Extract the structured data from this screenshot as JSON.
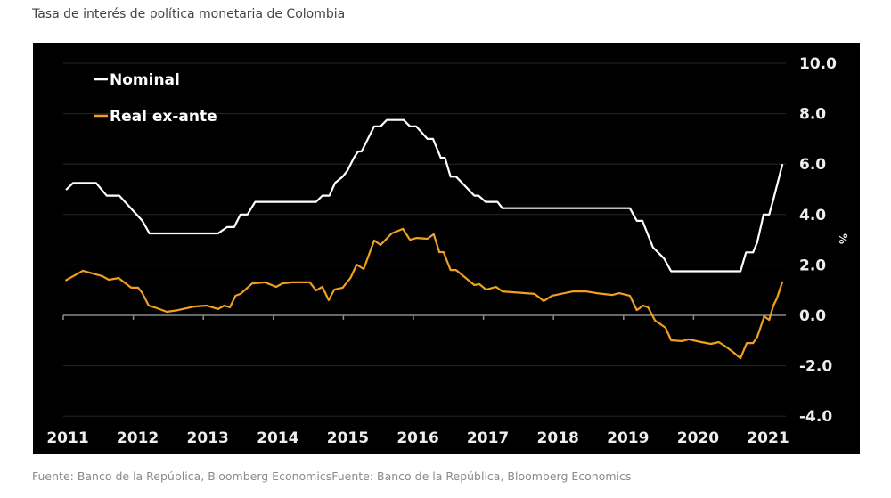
{
  "title": "Tasa de interés de política monetaria de Colombia",
  "source": "Fuente: Banco de la República, Bloomberg Economics",
  "source_repeat": "Fuente: Banco de la República, Bloomberg Economics",
  "chart_data": {
    "type": "line",
    "title": "Tasa de interés de política monetaria de Colombia",
    "xlabel": "",
    "ylabel": "%",
    "xlim": [
      2011,
      2021.35
    ],
    "ylim": [
      -4.0,
      10.0
    ],
    "x_ticks": [
      "2011",
      "2012",
      "2013",
      "2014",
      "2015",
      "2016",
      "2017",
      "2018",
      "2019",
      "2020",
      "2021"
    ],
    "y_ticks": [
      "10.0",
      "8.0",
      "6.0",
      "4.0",
      "2.0",
      "0.0",
      "-2.0",
      "-4.0"
    ],
    "grid": true,
    "legend_placement": "top-left",
    "background": "#000000",
    "series": [
      {
        "name": "Nominal",
        "color": "#ffffff",
        "points": [
          [
            2011.04,
            4.98
          ],
          [
            2011.14,
            5.25
          ],
          [
            2011.47,
            5.25
          ],
          [
            2011.62,
            4.75
          ],
          [
            2011.8,
            4.75
          ],
          [
            2012.13,
            3.75
          ],
          [
            2012.23,
            3.25
          ],
          [
            2013.21,
            3.25
          ],
          [
            2013.34,
            3.5
          ],
          [
            2013.44,
            3.5
          ],
          [
            2013.53,
            4.0
          ],
          [
            2013.63,
            4.0
          ],
          [
            2013.74,
            4.5
          ],
          [
            2014.61,
            4.5
          ],
          [
            2014.7,
            4.75
          ],
          [
            2014.8,
            4.75
          ],
          [
            2014.88,
            5.25
          ],
          [
            2014.99,
            5.5
          ],
          [
            2015.06,
            5.75
          ],
          [
            2015.15,
            6.25
          ],
          [
            2015.21,
            6.5
          ],
          [
            2015.26,
            6.5
          ],
          [
            2015.35,
            7.0
          ],
          [
            2015.44,
            7.5
          ],
          [
            2015.53,
            7.5
          ],
          [
            2015.62,
            7.75
          ],
          [
            2015.86,
            7.75
          ],
          [
            2015.95,
            7.5
          ],
          [
            2016.04,
            7.5
          ],
          [
            2016.2,
            7.0
          ],
          [
            2016.28,
            7.0
          ],
          [
            2016.39,
            6.25
          ],
          [
            2016.45,
            6.25
          ],
          [
            2016.53,
            5.5
          ],
          [
            2016.61,
            5.5
          ],
          [
            2016.87,
            4.75
          ],
          [
            2016.93,
            4.75
          ],
          [
            2017.03,
            4.5
          ],
          [
            2017.2,
            4.5
          ],
          [
            2017.27,
            4.25
          ],
          [
            2019.09,
            4.25
          ],
          [
            2019.19,
            3.75
          ],
          [
            2019.27,
            3.75
          ],
          [
            2019.42,
            2.7
          ],
          [
            2019.58,
            2.25
          ],
          [
            2019.68,
            1.75
          ],
          [
            2020.67,
            1.75
          ],
          [
            2020.75,
            2.5
          ],
          [
            2020.85,
            2.5
          ],
          [
            2020.91,
            2.9
          ],
          [
            2021.0,
            4.0
          ],
          [
            2021.08,
            4.0
          ],
          [
            2021.14,
            4.6
          ],
          [
            2021.27,
            6.0
          ]
        ]
      },
      {
        "name": "Real ex-ante",
        "color": "#f0a020",
        "points": [
          [
            2011.03,
            1.38
          ],
          [
            2011.28,
            1.77
          ],
          [
            2011.56,
            1.55
          ],
          [
            2011.65,
            1.41
          ],
          [
            2011.79,
            1.48
          ],
          [
            2011.97,
            1.1
          ],
          [
            2012.07,
            1.1
          ],
          [
            2012.13,
            0.88
          ],
          [
            2012.22,
            0.39
          ],
          [
            2012.3,
            0.32
          ],
          [
            2012.48,
            0.14
          ],
          [
            2012.64,
            0.21
          ],
          [
            2012.87,
            0.35
          ],
          [
            2013.05,
            0.39
          ],
          [
            2013.21,
            0.25
          ],
          [
            2013.3,
            0.39
          ],
          [
            2013.38,
            0.32
          ],
          [
            2013.46,
            0.78
          ],
          [
            2013.53,
            0.85
          ],
          [
            2013.7,
            1.27
          ],
          [
            2013.88,
            1.31
          ],
          [
            2014.04,
            1.13
          ],
          [
            2014.13,
            1.27
          ],
          [
            2014.27,
            1.31
          ],
          [
            2014.52,
            1.31
          ],
          [
            2014.61,
            0.99
          ],
          [
            2014.7,
            1.13
          ],
          [
            2014.79,
            0.6
          ],
          [
            2014.87,
            1.02
          ],
          [
            2014.99,
            1.1
          ],
          [
            2015.1,
            1.48
          ],
          [
            2015.19,
            2.01
          ],
          [
            2015.29,
            1.84
          ],
          [
            2015.44,
            2.97
          ],
          [
            2015.53,
            2.79
          ],
          [
            2015.69,
            3.25
          ],
          [
            2015.85,
            3.43
          ],
          [
            2015.95,
            3.0
          ],
          [
            2016.05,
            3.07
          ],
          [
            2016.2,
            3.04
          ],
          [
            2016.29,
            3.22
          ],
          [
            2016.37,
            2.51
          ],
          [
            2016.43,
            2.51
          ],
          [
            2016.53,
            1.8
          ],
          [
            2016.61,
            1.8
          ],
          [
            2016.87,
            1.2
          ],
          [
            2016.94,
            1.24
          ],
          [
            2017.04,
            1.02
          ],
          [
            2017.18,
            1.13
          ],
          [
            2017.27,
            0.95
          ],
          [
            2017.73,
            0.85
          ],
          [
            2017.86,
            0.57
          ],
          [
            2017.98,
            0.78
          ],
          [
            2018.28,
            0.95
          ],
          [
            2018.46,
            0.95
          ],
          [
            2018.62,
            0.88
          ],
          [
            2018.84,
            0.81
          ],
          [
            2018.94,
            0.88
          ],
          [
            2019.09,
            0.78
          ],
          [
            2019.19,
            0.21
          ],
          [
            2019.28,
            0.39
          ],
          [
            2019.35,
            0.32
          ],
          [
            2019.45,
            -0.21
          ],
          [
            2019.6,
            -0.49
          ],
          [
            2019.68,
            -0.99
          ],
          [
            2019.83,
            -1.02
          ],
          [
            2019.93,
            -0.95
          ],
          [
            2020.11,
            -1.06
          ],
          [
            2020.25,
            -1.13
          ],
          [
            2020.36,
            -1.06
          ],
          [
            2020.44,
            -1.2
          ],
          [
            2020.53,
            -1.38
          ],
          [
            2020.67,
            -1.7
          ],
          [
            2020.76,
            -1.1
          ],
          [
            2020.85,
            -1.1
          ],
          [
            2020.91,
            -0.85
          ],
          [
            2021.01,
            -0.04
          ],
          [
            2021.08,
            -0.18
          ],
          [
            2021.14,
            0.39
          ],
          [
            2021.19,
            0.67
          ],
          [
            2021.27,
            1.34
          ]
        ]
      }
    ]
  }
}
